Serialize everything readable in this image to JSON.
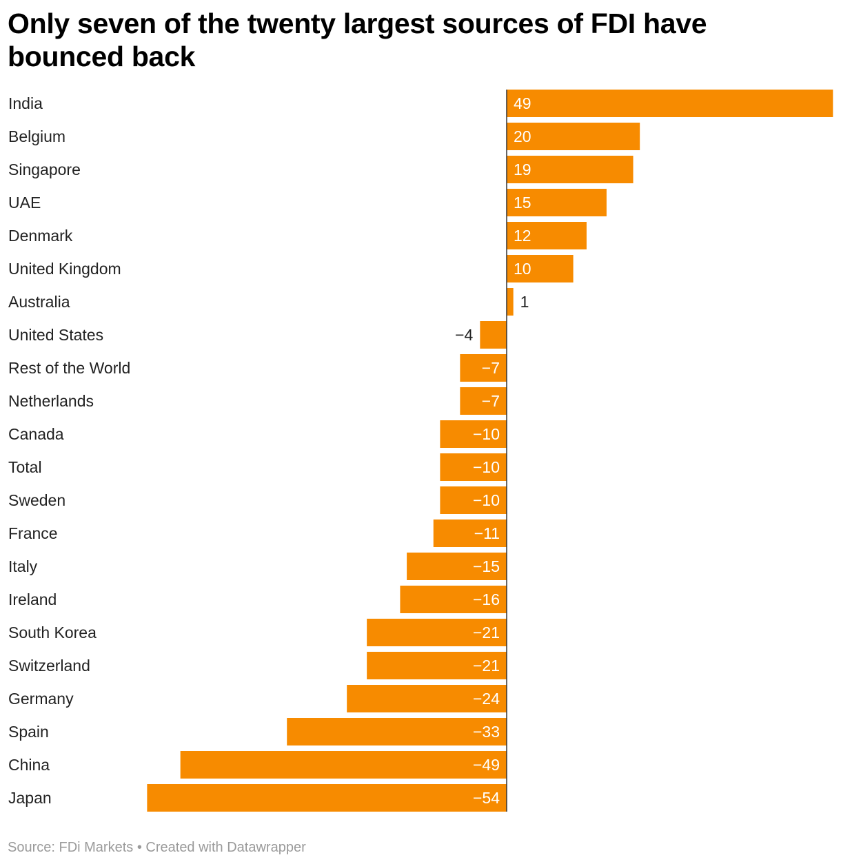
{
  "title": "Only seven of the twenty largest sources of FDI have bounced back",
  "footer": {
    "source": "Source: FDi Markets",
    "separator": "•",
    "credit": "Created with Datawrapper"
  },
  "colors": {
    "bar": "#f78b00",
    "axis": "#333333",
    "label_inside": "#ffffff",
    "label_outside": "#222222"
  },
  "chart_data": {
    "type": "bar",
    "orientation": "horizontal",
    "title": "Only seven of the twenty largest sources of FDI have bounced back",
    "categories": [
      "India",
      "Belgium",
      "Singapore",
      "UAE",
      "Denmark",
      "United Kingdom",
      "Australia",
      "United States",
      "Rest of the World",
      "Netherlands",
      "Canada",
      "Total",
      "Sweden",
      "France",
      "Italy",
      "Ireland",
      "South Korea",
      "Switzerland",
      "Germany",
      "Spain",
      "China",
      "Japan"
    ],
    "values": [
      49,
      20,
      19,
      15,
      12,
      10,
      1,
      -4,
      -7,
      -7,
      -10,
      -10,
      -10,
      -11,
      -15,
      -16,
      -21,
      -21,
      -24,
      -33,
      -49,
      -54
    ],
    "value_labels": [
      "49",
      "20",
      "19",
      "15",
      "12",
      "10",
      "1",
      "−4",
      "−7",
      "−7",
      "−10",
      "−10",
      "−10",
      "−11",
      "−15",
      "−16",
      "−21",
      "−21",
      "−24",
      "−33",
      "−49",
      "−54"
    ],
    "xlim": [
      -54,
      49
    ],
    "grid": false,
    "legend": "none"
  }
}
